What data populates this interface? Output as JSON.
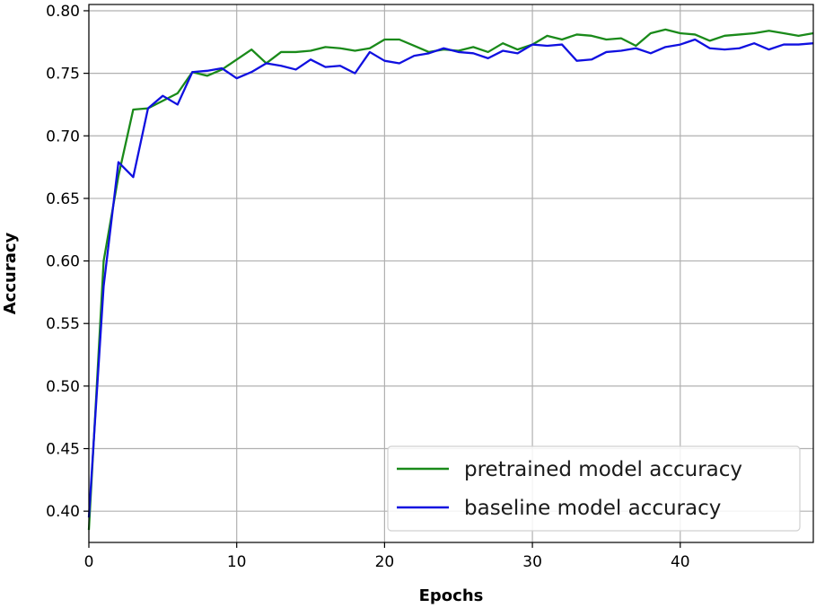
{
  "chart_data": {
    "type": "line",
    "xlabel": "Epochs",
    "ylabel": "Accuracy",
    "xlim": [
      0,
      49
    ],
    "ylim": [
      0.375,
      0.805
    ],
    "xticks": [
      0,
      10,
      20,
      30,
      40
    ],
    "yticks": [
      0.4,
      0.45,
      0.5,
      0.55,
      0.6,
      0.65,
      0.7,
      0.75,
      0.8
    ],
    "grid": true,
    "legend_position": "lower-right",
    "x": [
      0,
      1,
      2,
      3,
      4,
      5,
      6,
      7,
      8,
      9,
      10,
      11,
      12,
      13,
      14,
      15,
      16,
      17,
      18,
      19,
      20,
      21,
      22,
      23,
      24,
      25,
      26,
      27,
      28,
      29,
      30,
      31,
      32,
      33,
      34,
      35,
      36,
      37,
      38,
      39,
      40,
      41,
      42,
      43,
      44,
      45,
      46,
      47,
      48,
      49
    ],
    "series": [
      {
        "name": "pretrained model accuracy",
        "color": "#1a8a1a",
        "values": [
          0.385,
          0.6,
          0.668,
          0.721,
          0.722,
          0.728,
          0.734,
          0.751,
          0.748,
          0.753,
          0.761,
          0.769,
          0.758,
          0.767,
          0.767,
          0.768,
          0.771,
          0.77,
          0.768,
          0.77,
          0.777,
          0.777,
          0.772,
          0.767,
          0.769,
          0.768,
          0.771,
          0.767,
          0.774,
          0.769,
          0.773,
          0.78,
          0.777,
          0.781,
          0.78,
          0.777,
          0.778,
          0.772,
          0.782,
          0.785,
          0.782,
          0.781,
          0.776,
          0.78,
          0.781,
          0.782,
          0.784,
          0.782,
          0.78,
          0.782
        ]
      },
      {
        "name": "baseline model accuracy",
        "color": "#1010e0",
        "values": [
          0.395,
          0.58,
          0.679,
          0.667,
          0.722,
          0.732,
          0.725,
          0.751,
          0.752,
          0.754,
          0.746,
          0.751,
          0.758,
          0.756,
          0.753,
          0.761,
          0.755,
          0.756,
          0.75,
          0.767,
          0.76,
          0.758,
          0.764,
          0.766,
          0.77,
          0.767,
          0.766,
          0.762,
          0.768,
          0.766,
          0.773,
          0.772,
          0.773,
          0.76,
          0.761,
          0.767,
          0.768,
          0.77,
          0.766,
          0.771,
          0.773,
          0.777,
          0.77,
          0.769,
          0.77,
          0.774,
          0.769,
          0.773,
          0.773,
          0.774
        ]
      }
    ]
  }
}
